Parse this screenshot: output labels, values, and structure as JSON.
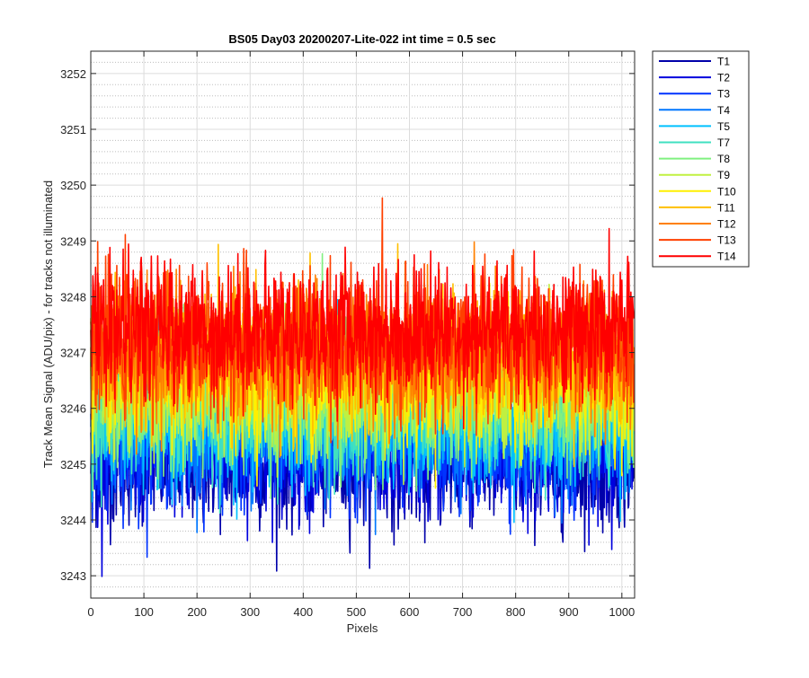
{
  "chart_data": {
    "type": "line",
    "title": "BS05 Day03 20200207-Lite-022 int time = 0.5 sec",
    "xlabel": "Pixels",
    "ylabel": "Track Mean Signal (ADU/pix) - for tracks not illuminated",
    "xlim": [
      0,
      1024
    ],
    "ylim": [
      3242.6,
      3252.4
    ],
    "xticks": [
      0,
      100,
      200,
      300,
      400,
      500,
      600,
      700,
      800,
      900,
      1000
    ],
    "yticks": [
      3243,
      3244,
      3245,
      3246,
      3247,
      3248,
      3249,
      3250,
      3251,
      3252
    ],
    "grid": true,
    "minor_grid": true,
    "legend_location": "outside-right-top",
    "series": [
      {
        "name": "T1",
        "color": "#0000AA",
        "mean": 3245.0,
        "noise": 0.55,
        "x_range": [
          0,
          1023
        ],
        "points": 1024
      },
      {
        "name": "T2",
        "color": "#0000DD",
        "mean": 3245.2,
        "noise": 0.55,
        "x_range": [
          0,
          1023
        ],
        "points": 1024
      },
      {
        "name": "T3",
        "color": "#0033FF",
        "mean": 3245.4,
        "noise": 0.55,
        "x_range": [
          0,
          1023
        ],
        "points": 1024
      },
      {
        "name": "T4",
        "color": "#0077FF",
        "mean": 3245.6,
        "noise": 0.55,
        "x_range": [
          0,
          1023
        ],
        "points": 1024
      },
      {
        "name": "T5",
        "color": "#00C0FF",
        "mean": 3245.8,
        "noise": 0.6,
        "x_range": [
          0,
          1023
        ],
        "points": 1024
      },
      {
        "name": "T7",
        "color": "#40E0C0",
        "mean": 3246.0,
        "noise": 0.6,
        "x_range": [
          0,
          1023
        ],
        "points": 1024
      },
      {
        "name": "T8",
        "color": "#80F080",
        "mean": 3246.2,
        "noise": 0.6,
        "x_range": [
          0,
          1023
        ],
        "points": 1024
      },
      {
        "name": "T9",
        "color": "#C0F040",
        "mean": 3246.4,
        "noise": 0.6,
        "x_range": [
          0,
          1023
        ],
        "points": 1024
      },
      {
        "name": "T10",
        "color": "#FFF000",
        "mean": 3246.6,
        "noise": 0.6,
        "x_range": [
          0,
          1023
        ],
        "points": 1024
      },
      {
        "name": "T11",
        "color": "#FFC000",
        "mean": 3246.8,
        "noise": 0.6,
        "x_range": [
          0,
          1023
        ],
        "points": 1024
      },
      {
        "name": "T12",
        "color": "#FF8000",
        "mean": 3247.0,
        "noise": 0.6,
        "x_range": [
          0,
          1023
        ],
        "points": 1024
      },
      {
        "name": "T13",
        "color": "#FF4000",
        "mean": 3247.2,
        "noise": 0.6,
        "x_range": [
          0,
          1023
        ],
        "points": 1024
      },
      {
        "name": "T14",
        "color": "#FF0000",
        "mean": 3247.4,
        "noise": 0.6,
        "x_range": [
          0,
          1023
        ],
        "points": 1024
      }
    ]
  }
}
